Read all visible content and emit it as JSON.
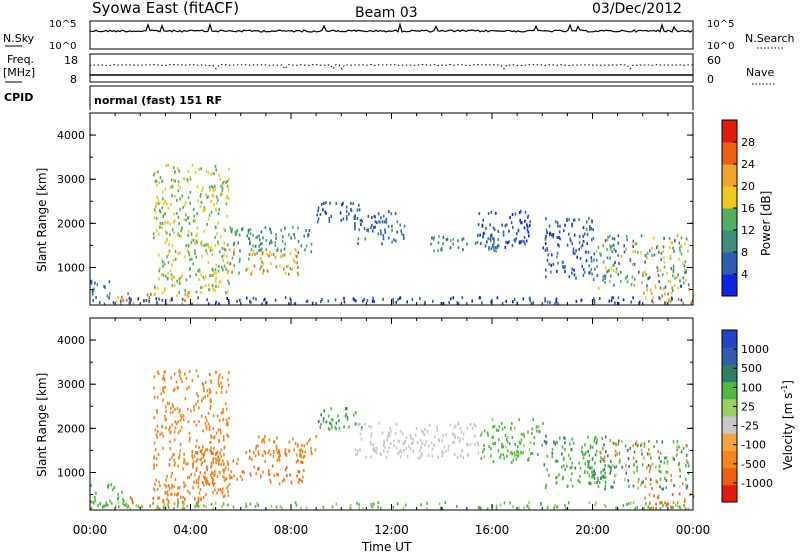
{
  "header": {
    "title": "Syowa East (fitACF)",
    "beam": "Beam 03",
    "date": "03/Dec/2012"
  },
  "noise_panel": {
    "left_label": "N.Sky",
    "right_label": "N.Search",
    "left_ticks": [
      "10^5",
      "10^0"
    ],
    "right_ticks": [
      "10^5",
      "10^0"
    ]
  },
  "freq_panel": {
    "left_label_line1": "Freq.",
    "left_label_line2": "[MHz]",
    "right_label": "Nave",
    "left_ticks": [
      "18",
      "8"
    ],
    "right_ticks": [
      "60",
      "0"
    ]
  },
  "cpid": {
    "label": "CPID",
    "mode": "normal (fast) 151 RF"
  },
  "colors": {
    "power_scale": [
      "#0b24e6",
      "#2f5db2",
      "#3e8f7a",
      "#4fb063",
      "#f2c81e",
      "#f4a32a",
      "#ee5f12",
      "#e31b0c"
    ],
    "velocity_scale": [
      "#e31b0c",
      "#ee5f12",
      "#f7851c",
      "#f6a33a",
      "#c8c8c8",
      "#9ad05f",
      "#4fb93f",
      "#2e7f67",
      "#2f5db2",
      "#2244c8"
    ]
  },
  "chart_data": [
    {
      "type": "heatmap",
      "name": "power",
      "ylabel": "Slant Range [km]",
      "yticks": [
        "4000",
        "3000",
        "2000",
        "1000"
      ],
      "colorbar_label": "Power [dB]",
      "colorbar_ticks": [
        "28",
        "24",
        "20",
        "16",
        "12",
        "8",
        "4"
      ],
      "xticks": [
        "00:00",
        "04:00",
        "08:00",
        "12:00",
        "16:00",
        "20:00",
        "00:00"
      ],
      "xlabel": "",
      "regions": [
        {
          "t0": 0.0,
          "t1": 0.9,
          "r0": 180,
          "r1": 700,
          "v0": 6,
          "v1": 12
        },
        {
          "t0": 1.0,
          "t1": 4.0,
          "r0": 150,
          "r1": 420,
          "v0": 16,
          "v1": 28
        },
        {
          "t0": 2.5,
          "t1": 5.5,
          "r0": 400,
          "r1": 3300,
          "v0": 14,
          "v1": 22
        },
        {
          "t0": 5.2,
          "t1": 8.3,
          "r0": 800,
          "r1": 1400,
          "v0": 14,
          "v1": 28
        },
        {
          "t0": 5.5,
          "t1": 8.8,
          "r0": 1300,
          "r1": 1900,
          "v0": 8,
          "v1": 16
        },
        {
          "t0": 9.0,
          "t1": 10.8,
          "r0": 1950,
          "r1": 2450,
          "v0": 4,
          "v1": 10
        },
        {
          "t0": 10.5,
          "t1": 12.5,
          "r0": 1500,
          "r1": 2300,
          "v0": 6,
          "v1": 12
        },
        {
          "t0": 13.5,
          "t1": 16.3,
          "r0": 1350,
          "r1": 1700,
          "v0": 8,
          "v1": 16
        },
        {
          "t0": 15.3,
          "t1": 17.5,
          "r0": 1400,
          "r1": 2300,
          "v0": 4,
          "v1": 10
        },
        {
          "t0": 18.0,
          "t1": 20.0,
          "r0": 700,
          "r1": 2100,
          "v0": 4,
          "v1": 12
        },
        {
          "t0": 20.0,
          "t1": 23.8,
          "r0": 500,
          "r1": 1700,
          "v0": 8,
          "v1": 24
        },
        {
          "t0": 22.0,
          "t1": 24.0,
          "r0": 150,
          "r1": 500,
          "v0": 16,
          "v1": 28
        },
        {
          "t0": 0.0,
          "t1": 24.0,
          "r0": 150,
          "r1": 300,
          "v0": 4,
          "v1": 10
        }
      ]
    },
    {
      "type": "heatmap",
      "name": "velocity",
      "ylabel": "Slant Range [km]",
      "yticks": [
        "4000",
        "3000",
        "2000",
        "1000"
      ],
      "colorbar_label": "Velocity [m s^-1]",
      "colorbar_ticks": [
        "1000",
        "500",
        "100",
        "25",
        "-25",
        "-100",
        "-500",
        "-1000"
      ],
      "xticks": [
        "00:00",
        "04:00",
        "08:00",
        "12:00",
        "16:00",
        "20:00",
        "00:00"
      ],
      "xlabel": "Time UT",
      "regions": [
        {
          "t0": 0.0,
          "t1": 1.5,
          "r0": 180,
          "r1": 700,
          "v0": 100,
          "v1": 400
        },
        {
          "t0": 1.5,
          "t1": 4.5,
          "r0": 150,
          "r1": 420,
          "v0": -800,
          "v1": -300
        },
        {
          "t0": 2.5,
          "t1": 5.5,
          "r0": 400,
          "r1": 3300,
          "v0": -400,
          "v1": -100
        },
        {
          "t0": 4.0,
          "t1": 8.5,
          "r0": 700,
          "r1": 1500,
          "v0": -600,
          "v1": -300
        },
        {
          "t0": 6.5,
          "t1": 9.0,
          "r0": 1300,
          "r1": 1800,
          "v0": -400,
          "v1": -100
        },
        {
          "t0": 9.0,
          "t1": 10.8,
          "r0": 1950,
          "r1": 2450,
          "v0": 200,
          "v1": 800
        },
        {
          "t0": 10.5,
          "t1": 15.5,
          "r0": 1300,
          "r1": 2100,
          "v0": -20,
          "v1": 20
        },
        {
          "t0": 15.5,
          "t1": 18.0,
          "r0": 1200,
          "r1": 2200,
          "v0": 50,
          "v1": 300
        },
        {
          "t0": 18.0,
          "t1": 20.5,
          "r0": 600,
          "r1": 1800,
          "v0": 100,
          "v1": 600
        },
        {
          "t0": 20.0,
          "t1": 23.8,
          "r0": 600,
          "r1": 1700,
          "v0": -300,
          "v1": 800
        },
        {
          "t0": 22.0,
          "t1": 24.0,
          "r0": 150,
          "r1": 500,
          "v0": -800,
          "v1": -200
        },
        {
          "t0": 0.0,
          "t1": 24.0,
          "r0": 150,
          "r1": 300,
          "v0": 30,
          "v1": 200
        }
      ]
    }
  ]
}
